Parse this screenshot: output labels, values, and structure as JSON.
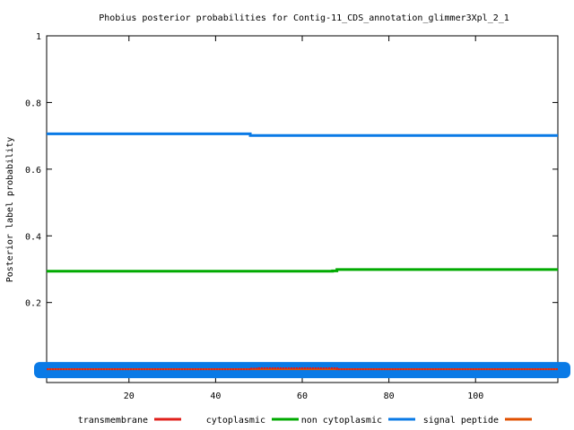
{
  "chart_data": {
    "type": "line",
    "title": "Phobius posterior probabilities for Contig-11_CDS_annotation_glimmer3Xpl_2_1",
    "xlabel": "",
    "ylabel": "Posterior label probability",
    "xlim": [
      1,
      119
    ],
    "ylim": [
      -0.04,
      1
    ],
    "xticks": [
      "20",
      "40",
      "60",
      "80",
      "100"
    ],
    "yticks": [
      "0.2",
      "0.4",
      "0.6",
      "0.8",
      "1"
    ],
    "grid": false,
    "legend_position": "bottom",
    "series": [
      {
        "name": "transmembrane",
        "color": "#e0201b",
        "x": [
          1,
          44,
          48,
          50,
          68,
          119
        ],
        "y": [
          0.0,
          0.0,
          0.002,
          0.003,
          0.0,
          0.0
        ]
      },
      {
        "name": "cytoplasmic",
        "color": "#00aa00",
        "x": [
          1,
          67,
          68,
          119
        ],
        "y": [
          0.294,
          0.295,
          0.299,
          0.299
        ]
      },
      {
        "name": "non cytoplasmic",
        "color": "#0a7ae6",
        "x": [
          1,
          44,
          48,
          119
        ],
        "y": [
          0.706,
          0.706,
          0.701,
          0.701
        ]
      },
      {
        "name": "signal peptide",
        "color": "#e05000",
        "x": [
          1,
          119
        ],
        "y": [
          0.0,
          0.0
        ]
      }
    ]
  }
}
